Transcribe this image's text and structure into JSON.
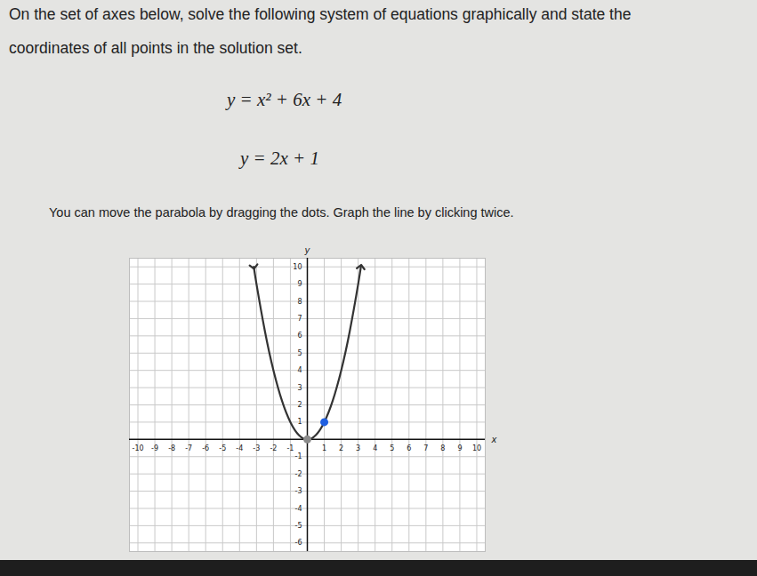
{
  "question": {
    "text": [
      "On the set of axes below, solve the following system of equations graphically and state the",
      "coordinates of all points in the solution set."
    ],
    "equations": [
      "y = x² + 6x + 4",
      "y = 2x + 1"
    ],
    "instruction": "You can move the parabola by dragging the dots. Graph the line by clicking twice."
  },
  "chart_data": {
    "type": "line",
    "x_label": "x",
    "y_label": "y",
    "xlim": [
      -10.5,
      10.5
    ],
    "ylim": [
      -6.5,
      10.5
    ],
    "xticks": [
      -10,
      -9,
      -8,
      -7,
      -6,
      -5,
      -4,
      -3,
      -2,
      -1,
      1,
      2,
      3,
      4,
      5,
      6,
      7,
      8,
      9,
      10
    ],
    "yticks": [
      -6,
      -5,
      -4,
      -3,
      -2,
      -1,
      1,
      2,
      3,
      4,
      5,
      6,
      7,
      8,
      9,
      10
    ],
    "grid": true,
    "series": [
      {
        "type": "line",
        "color": "#333333",
        "marker": "arrow",
        "x": [
          -3.16,
          -3,
          -2.5,
          -2,
          -1.5,
          -1,
          -0.5,
          0,
          0.5,
          1,
          1.5,
          2,
          2.5,
          3,
          3.16
        ],
        "values": [
          10,
          9,
          6.25,
          4,
          2.25,
          1,
          0.25,
          0,
          0.25,
          1,
          2.25,
          4,
          6.25,
          9,
          10
        ]
      },
      {
        "type": "scatter",
        "colors": [
          "#8a8a8a",
          "#1f5fe0"
        ],
        "marker": "circle",
        "x": [
          0,
          1
        ],
        "values": [
          0,
          1
        ]
      }
    ]
  }
}
